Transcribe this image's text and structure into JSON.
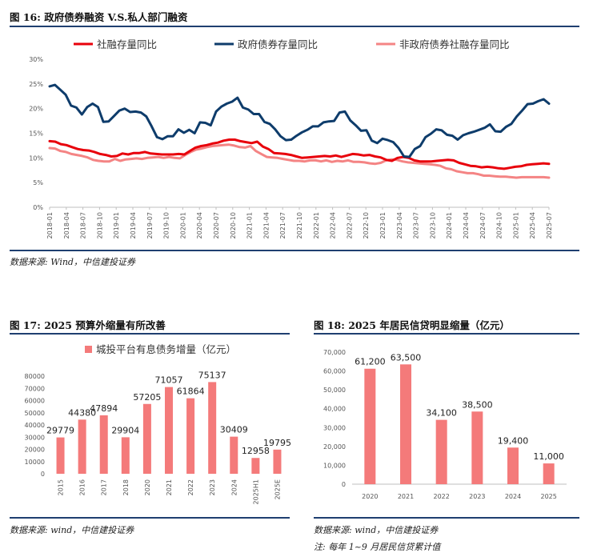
{
  "fig16": {
    "title": "图 16: 政府债券融资 V.S.私人部门融资",
    "source": "数据来源: Wind，中信建投证券"
  },
  "fig17": {
    "title": "图 17: 2025 预算外缩量有所改善",
    "source": "数据来源: wind，中信建投证券"
  },
  "fig18": {
    "title": "图 18: 2025 年居民信贷明显缩量（亿元）",
    "source": "数据来源: wind，中信建投证券",
    "note": "注: 每年 1~9 月居民信贷累计值"
  },
  "colors": {
    "red": "#e8000b",
    "navy": "#0e3c6b",
    "pink": "#f48484",
    "bar": "#f47a7a",
    "rule": "#1f3f70"
  },
  "chart_data": [
    {
      "id": "fig16",
      "type": "line",
      "ylim": [
        0,
        30
      ],
      "yticks": [
        0,
        5,
        10,
        15,
        20,
        25,
        30
      ],
      "ytick_labels": [
        "0%",
        "5%",
        "10%",
        "15%",
        "20%",
        "25%",
        "30%"
      ],
      "tick_labels": [
        "2018-01",
        "2018-04",
        "2018-07",
        "2018-10",
        "2019-01",
        "2019-04",
        "2019-07",
        "2019-10",
        "2020-01",
        "2020-04",
        "2020-07",
        "2020-10",
        "2021-01",
        "2021-04",
        "2021-07",
        "2021-10",
        "2022-01",
        "2022-04",
        "2022-07",
        "2022-10",
        "2023-01",
        "2023-04",
        "2023-07",
        "2023-10",
        "2024-01",
        "2024-04",
        "2024-07",
        "2024-10",
        "2025-01",
        "2025-04",
        "2025-07"
      ],
      "series": [
        {
          "name": "社融存量同比",
          "color": "#e8000b",
          "values": [
            13.4,
            13.3,
            12.8,
            12.6,
            12.2,
            11.8,
            11.6,
            11.5,
            11.2,
            10.8,
            10.6,
            10.3,
            10.4,
            10.9,
            10.7,
            11.0,
            11.0,
            11.2,
            10.9,
            10.8,
            10.7,
            10.7,
            10.7,
            10.8,
            10.7,
            11.4,
            12.1,
            12.4,
            12.6,
            12.9,
            13.1,
            13.5,
            13.7,
            13.7,
            13.4,
            13.2,
            13.0,
            13.3,
            12.3,
            11.8,
            11.0,
            10.9,
            10.8,
            10.6,
            10.3,
            10.0,
            10.1,
            10.2,
            10.3,
            10.4,
            10.3,
            10.5,
            10.2,
            10.5,
            10.8,
            10.7,
            10.5,
            10.6,
            10.3,
            10.1,
            9.6,
            9.4,
            10.0,
            10.2,
            10.0,
            9.5,
            9.3,
            9.3,
            9.3,
            9.4,
            9.5,
            9.6,
            9.5,
            9.0,
            8.7,
            8.4,
            8.3,
            8.1,
            8.2,
            8.1,
            7.9,
            7.8,
            8.0,
            8.2,
            8.3,
            8.6,
            8.7,
            8.8,
            8.9,
            8.8
          ]
        },
        {
          "name": "政府债券存量同比",
          "color": "#0e3c6b",
          "values": [
            24.5,
            24.8,
            23.8,
            22.8,
            20.6,
            20.2,
            18.8,
            20.3,
            21.0,
            20.3,
            17.3,
            17.4,
            18.5,
            19.6,
            20.0,
            19.3,
            19.4,
            19.2,
            18.4,
            16.4,
            14.2,
            13.8,
            14.4,
            14.4,
            15.8,
            15.1,
            15.7,
            15.0,
            17.2,
            17.1,
            16.6,
            19.4,
            20.4,
            21.0,
            21.4,
            22.2,
            20.2,
            19.8,
            18.9,
            18.9,
            17.3,
            16.9,
            15.8,
            14.4,
            13.6,
            13.7,
            14.5,
            15.2,
            15.7,
            16.4,
            16.4,
            17.2,
            17.4,
            17.5,
            19.2,
            19.4,
            17.6,
            16.6,
            15.5,
            15.6,
            13.5,
            13.0,
            13.9,
            13.6,
            13.2,
            12.0,
            10.3,
            10.2,
            11.8,
            12.4,
            14.2,
            14.9,
            15.8,
            15.6,
            14.7,
            14.5,
            13.7,
            14.6,
            15.0,
            15.3,
            15.7,
            16.1,
            16.8,
            15.4,
            15.3,
            16.3,
            16.9,
            18.4,
            19.6,
            20.9,
            21.0,
            21.5,
            21.9,
            21.0
          ]
        },
        {
          "name": "非政府债券社融存量同比",
          "color": "#f48484",
          "values": [
            12.0,
            11.9,
            11.4,
            11.2,
            10.8,
            10.6,
            10.4,
            10.1,
            9.6,
            9.4,
            9.3,
            9.3,
            9.8,
            9.4,
            9.7,
            9.8,
            9.9,
            9.8,
            10.0,
            10.1,
            10.2,
            10.0,
            10.2,
            10.0,
            9.9,
            10.6,
            11.2,
            11.7,
            11.9,
            12.2,
            12.4,
            12.5,
            12.6,
            12.7,
            12.5,
            12.2,
            12.1,
            12.4,
            11.4,
            10.8,
            10.2,
            10.1,
            10.0,
            9.8,
            9.6,
            9.4,
            9.4,
            9.3,
            9.5,
            9.5,
            9.3,
            9.5,
            9.2,
            9.4,
            9.3,
            9.5,
            9.2,
            9.2,
            9.1,
            8.9,
            8.8,
            9.0,
            9.5,
            9.7,
            9.6,
            9.3,
            9.1,
            9.0,
            8.9,
            8.8,
            8.7,
            8.6,
            8.4,
            7.9,
            7.7,
            7.3,
            7.1,
            6.9,
            6.9,
            6.7,
            6.4,
            6.4,
            6.3,
            6.2,
            6.2,
            6.1,
            6.0,
            6.1,
            6.1,
            6.1,
            6.1,
            6.1,
            6.0
          ]
        }
      ]
    },
    {
      "id": "fig17",
      "type": "bar",
      "legend": "城投平台有息债务增量（亿元）",
      "categories": [
        "2015",
        "2016",
        "2017",
        "2018",
        "2020",
        "2021",
        "2022",
        "2023",
        "2024",
        "2025H1",
        "2025E"
      ],
      "values": [
        29779,
        44380,
        47894,
        29904,
        57205,
        71057,
        61864,
        75137,
        30409,
        12958,
        19795
      ],
      "value_labels": [
        "29779",
        "44380",
        "47894",
        "29904",
        "57205",
        "71057",
        "61864",
        "75137",
        "30409",
        "12958",
        "19795"
      ],
      "ylim": [
        0,
        80000
      ],
      "yticks": [
        0,
        10000,
        20000,
        30000,
        40000,
        50000,
        60000,
        70000,
        80000
      ],
      "ytick_labels": [
        "0",
        "10000",
        "20000",
        "30000",
        "40000",
        "50000",
        "60000",
        "70000",
        "80000"
      ]
    },
    {
      "id": "fig18",
      "type": "bar",
      "categories": [
        "2020",
        "2021",
        "2022",
        "2023",
        "2024",
        "2025"
      ],
      "values": [
        61200,
        63500,
        34100,
        38500,
        19400,
        11000
      ],
      "value_labels": [
        "61,200",
        "63,500",
        "34,100",
        "38,500",
        "19,400",
        "11,000"
      ],
      "ylim": [
        0,
        70000
      ],
      "yticks": [
        0,
        10000,
        20000,
        30000,
        40000,
        50000,
        60000,
        70000
      ],
      "ytick_labels": [
        "0",
        "10,000",
        "20,000",
        "30,000",
        "40,000",
        "50,000",
        "60,000",
        "70,000"
      ]
    }
  ]
}
